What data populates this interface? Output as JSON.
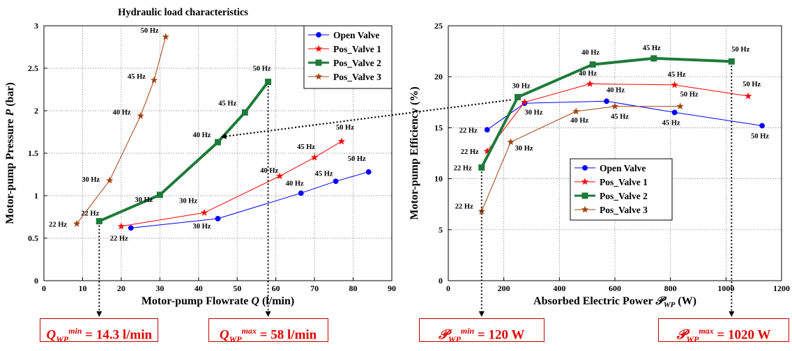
{
  "chart_data": [
    {
      "type": "line",
      "title": "Hydraulic load characteristics",
      "xlabel_prefix": "Motor-pump Flowrate ",
      "xlabel_var": "Q",
      "xlabel_unit": " (l/min)",
      "ylabel_prefix": "Motor-pump Pressure ",
      "ylabel_var": "P",
      "ylabel_unit": " (bar)",
      "xlim": [
        0,
        90
      ],
      "ylim": [
        0,
        3
      ],
      "xticks": [
        0,
        10,
        20,
        30,
        40,
        50,
        60,
        70,
        80,
        90
      ],
      "yticks": [
        0,
        0.5,
        1,
        1.5,
        2,
        2.5,
        3
      ],
      "grid": true,
      "legend_position": "top-right",
      "series": [
        {
          "name": "Open Valve",
          "color": "#0000ff",
          "marker": "circle",
          "width": 1,
          "x": [
            22.5,
            45,
            66.5,
            75.5,
            84
          ],
          "y": [
            0.62,
            0.73,
            1.03,
            1.17,
            1.28
          ],
          "labels": [
            "22 Hz",
            "30 Hz",
            "40 Hz",
            "45 Hz",
            "50 Hz"
          ]
        },
        {
          "name": "Pos_Valve 1",
          "color": "#ff0000",
          "marker": "star",
          "width": 1,
          "x": [
            20,
            41.5,
            61,
            70,
            77
          ],
          "y": [
            0.64,
            0.8,
            1.23,
            1.45,
            1.64
          ],
          "labels": [
            "",
            "30 Hz",
            "40 Hz",
            "45 Hz",
            "50 Hz"
          ]
        },
        {
          "name": "Pos_Valve 2",
          "color": "#1f7a3a",
          "marker": "square",
          "width": 4,
          "x": [
            14.3,
            30,
            45,
            52,
            58
          ],
          "y": [
            0.7,
            1.01,
            1.63,
            1.98,
            2.34
          ],
          "labels": [
            "22 Hz",
            "30 Hz",
            "40 Hz",
            "45 Hz",
            "50 Hz"
          ]
        },
        {
          "name": "Pos_Valve 3",
          "color": "#a0410d",
          "marker": "star",
          "width": 1,
          "x": [
            8.5,
            17,
            25,
            28.5,
            31.5
          ],
          "y": [
            0.67,
            1.18,
            1.94,
            2.36,
            2.87
          ],
          "labels": [
            "22 Hz",
            "30 Hz",
            "40 Hz",
            "45 Hz",
            "50 Hz"
          ]
        }
      ]
    },
    {
      "type": "line",
      "title": "",
      "xlabel_prefix": "Absorbed Electric Power ",
      "xlabel_var": "𝒫",
      "xlabel_sub": "WP",
      "xlabel_unit": " (W)",
      "ylabel_prefix": "Motor-pump Efficiency ",
      "ylabel_unit": "(%)",
      "xlim": [
        0,
        1200
      ],
      "ylim": [
        0,
        25
      ],
      "xticks": [
        0,
        200,
        400,
        600,
        800,
        1000,
        1200
      ],
      "yticks": [
        0,
        5,
        10,
        15,
        20,
        25
      ],
      "grid": true,
      "legend_position": "center-right",
      "series": [
        {
          "name": "Open Valve",
          "color": "#0000ff",
          "marker": "circle",
          "width": 1,
          "x": [
            140,
            275,
            570,
            815,
            1130
          ],
          "y": [
            14.8,
            17.4,
            17.6,
            16.5,
            15.2
          ],
          "labels": [
            "22 Hz",
            "30 Hz",
            "40 Hz",
            "45 Hz",
            "50 Hz"
          ]
        },
        {
          "name": "Pos_Valve 1",
          "color": "#ff0000",
          "marker": "star",
          "width": 1,
          "x": [
            140,
            275,
            510,
            815,
            1080
          ],
          "y": [
            12.7,
            17.5,
            19.3,
            19.2,
            18.1
          ],
          "labels": [
            "22 Hz",
            "",
            "40 Hz",
            "45 Hz",
            "50 Hz"
          ]
        },
        {
          "name": "Pos_Valve 2",
          "color": "#1f7a3a",
          "marker": "square",
          "width": 4,
          "x": [
            120,
            250,
            520,
            740,
            1020
          ],
          "y": [
            11.1,
            18.0,
            21.2,
            21.8,
            21.5
          ],
          "labels": [
            "22 Hz",
            "30 Hz",
            "40 Hz",
            "45 Hz",
            "50 Hz"
          ]
        },
        {
          "name": "Pos_Valve 3",
          "color": "#a0410d",
          "marker": "star",
          "width": 1,
          "x": [
            120,
            225,
            460,
            600,
            835
          ],
          "y": [
            6.8,
            13.6,
            16.6,
            17.1,
            17.1
          ],
          "labels": [
            "22 Hz",
            "30 Hz",
            "40 Hz",
            "45 Hz",
            "50 Hz"
          ]
        }
      ]
    }
  ],
  "annotations": [
    {
      "sym": "Q",
      "sub": "WP",
      "sup": "min",
      "value": " = 14.3 l/min",
      "chart": 0,
      "x": 14.3
    },
    {
      "sym": "Q",
      "sub": "WP",
      "sup": "max",
      "value": " = 58 l/min",
      "chart": 0,
      "x": 58
    },
    {
      "sym": "𝒫",
      "sub": "WP",
      "sup": "min",
      "value": " = 120 W",
      "chart": 1,
      "x": 120
    },
    {
      "sym": "𝒫",
      "sub": "WP",
      "sup": "max",
      "value": " = 1020 W",
      "chart": 1,
      "x": 1020
    }
  ]
}
